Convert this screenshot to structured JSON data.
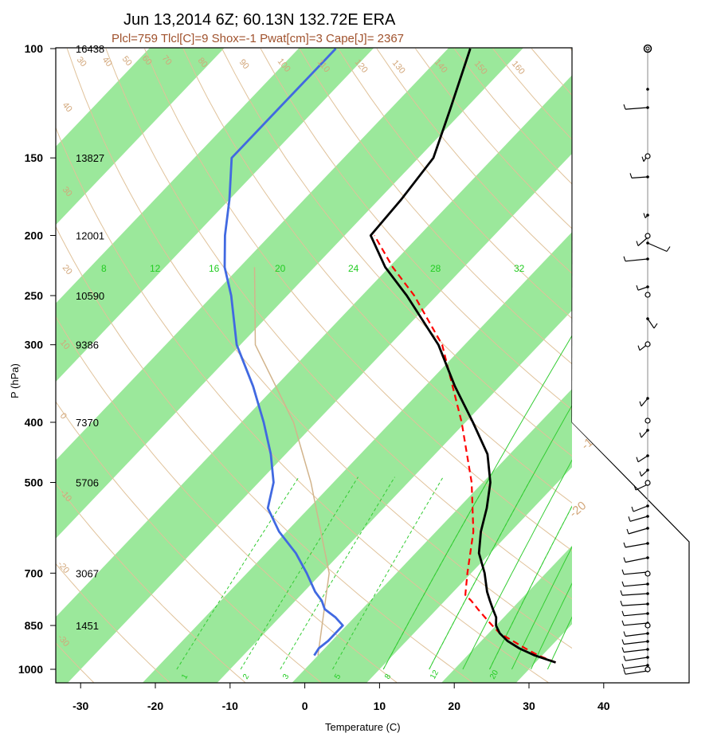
{
  "chart_data": {
    "type": "line",
    "title": "Jun 13,2014 6Z; 60.13N 132.72E ERA",
    "subtitle": "Plcl=759 Tlcl[C]=9 Shox=-1 Pwat[cm]=3 Cape[J]= 2367",
    "xlabel": "Temperature (C)",
    "ylabel": "P (hPa)",
    "xlim": [
      -33,
      51
    ],
    "ylim": [
      1010,
      100
    ],
    "y_scale": "log",
    "x_ticks": [
      "-30",
      "-20",
      "-10",
      "0",
      "10",
      "20",
      "30",
      "40"
    ],
    "p_ticks": [
      {
        "p": 100,
        "label": "100"
      },
      {
        "p": 150,
        "label": "150"
      },
      {
        "p": 200,
        "label": "200"
      },
      {
        "p": 250,
        "label": "250"
      },
      {
        "p": 300,
        "label": "300"
      },
      {
        "p": 400,
        "label": "400"
      },
      {
        "p": 500,
        "label": "500"
      },
      {
        "p": 700,
        "label": "700"
      },
      {
        "p": 850,
        "label": "850"
      },
      {
        "p": 1000,
        "label": "1000"
      }
    ],
    "heights": [
      {
        "p": 100,
        "label": "16438"
      },
      {
        "p": 150,
        "label": "13827"
      },
      {
        "p": 200,
        "label": "12001"
      },
      {
        "p": 250,
        "label": "10590"
      },
      {
        "p": 300,
        "label": "9386"
      },
      {
        "p": 400,
        "label": "7370"
      },
      {
        "p": 500,
        "label": "5706"
      },
      {
        "p": 700,
        "label": "3067"
      },
      {
        "p": 850,
        "label": "1451"
      }
    ],
    "temperature": {
      "p": [
        975,
        950,
        925,
        900,
        875,
        850,
        825,
        800,
        775,
        750,
        700,
        650,
        600,
        550,
        500,
        450,
        400,
        350,
        300,
        250,
        225,
        200,
        175,
        150,
        125,
        100
      ],
      "t": [
        32.7,
        29.0,
        26.0,
        23.5,
        21.5,
        20.0,
        19.0,
        17.5,
        16.0,
        14.5,
        11.8,
        8.5,
        6.0,
        3.8,
        1.0,
        -3.0,
        -9.0,
        -16.0,
        -23.5,
        -34.0,
        -40.5,
        -46.5,
        -47.0,
        -48.0,
        -52.0,
        -57.0
      ]
    },
    "dewpoint": {
      "p": [
        950,
        925,
        900,
        875,
        850,
        825,
        800,
        775,
        750,
        700,
        650,
        600,
        550,
        500,
        450,
        400,
        350,
        300,
        250,
        225,
        200,
        175,
        150,
        125,
        100
      ],
      "t": [
        -0.5,
        -0.8,
        -0.5,
        -0.5,
        -0.5,
        -2.5,
        -5.0,
        -6.5,
        -8.5,
        -12.0,
        -16.0,
        -21.0,
        -25.5,
        -28.0,
        -32.0,
        -37.0,
        -43.0,
        -50.5,
        -57.5,
        -62.0,
        -66.0,
        -70.0,
        -75.0,
        -75.0,
        -75.0
      ]
    },
    "parcel": {
      "p": [
        975,
        950,
        925,
        900,
        875,
        850,
        825,
        800,
        775,
        759,
        700,
        600,
        500,
        400,
        300,
        250,
        225,
        200
      ],
      "t": [
        32.7,
        29.5,
        26.8,
        24.2,
        21.5,
        19.5,
        17.5,
        15.5,
        13.5,
        12.0,
        9.5,
        5.0,
        -1.5,
        -10.5,
        -23.0,
        -33.0,
        -39.5,
        -46.0
      ]
    },
    "iso_labels": [
      "-20",
      "-10",
      "0",
      "10",
      "20",
      "30",
      "40",
      "50"
    ],
    "theta_labels": [
      "30",
      "40",
      "50",
      "60",
      "70",
      "80",
      "90",
      "100",
      "110",
      "120",
      "130",
      "140",
      "150",
      "160"
    ],
    "theta_left_labels": [
      "40",
      "30",
      "20",
      "10",
      "0",
      "-10",
      "-20",
      "-30"
    ],
    "mixing_top": [
      "8",
      "12",
      "16",
      "20",
      "24",
      "28",
      "32"
    ],
    "mixing_bottom": [
      "1",
      "2",
      "3",
      "5",
      "8",
      "12",
      "20"
    ],
    "colors": {
      "temperature": "#000000",
      "dewpoint": "#4169e1",
      "parcel": "#ff0000",
      "isotherm_band": "#9be89b",
      "dry_adiabat": "#e0c29a",
      "mixing_ratio": "#33cc33",
      "parcel_virtual": "#d2b48c"
    }
  }
}
